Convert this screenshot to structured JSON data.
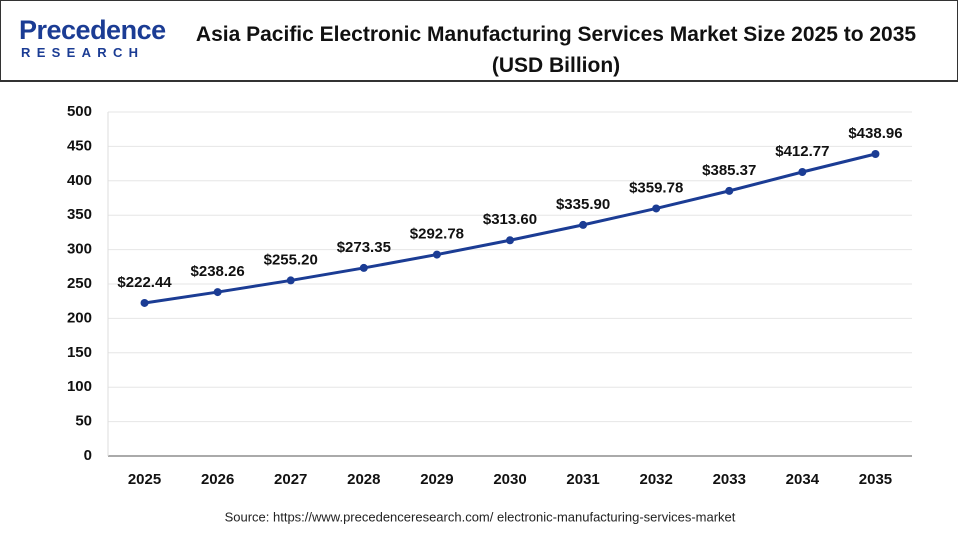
{
  "logo": {
    "brand": "Precedence",
    "tagline": "RESEARCH"
  },
  "chart_data": {
    "type": "line",
    "title": "Asia Pacific Electronic Manufacturing Services Market Size 2025 to 2035 (USD Billion)",
    "source": "Source: https://www.precedenceresearch.com/ electronic-manufacturing-services-market",
    "categories": [
      "2025",
      "2026",
      "2027",
      "2028",
      "2029",
      "2030",
      "2031",
      "2032",
      "2033",
      "2034",
      "2035"
    ],
    "values": [
      222.44,
      238.26,
      255.2,
      273.35,
      292.78,
      313.6,
      335.9,
      359.78,
      385.37,
      412.77,
      438.96
    ],
    "value_labels": [
      "$222.44",
      "$238.26",
      "$255.20",
      "$273.35",
      "$292.78",
      "$313.60",
      "$335.90",
      "$359.78",
      "$385.37",
      "$412.77",
      "$438.96"
    ],
    "color": "#1b3c94",
    "ylim": [
      0,
      500
    ],
    "yticks": [
      0,
      50,
      100,
      150,
      200,
      250,
      300,
      350,
      400,
      450,
      500
    ],
    "grid": true
  }
}
